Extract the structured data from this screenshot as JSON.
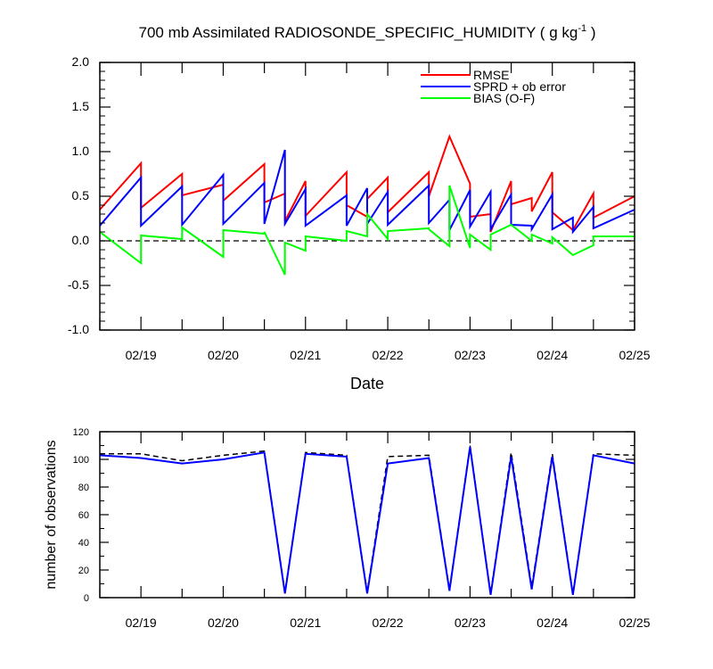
{
  "colors": {
    "rmse": "#ff0000",
    "sprd": "#0000ff",
    "bias": "#00ff00",
    "obs_possible": "#000000",
    "obs_assim": "#0000ff",
    "axis": "#000000"
  },
  "chart_data": [
    {
      "type": "line",
      "title_main": "700 mb Assimilated RADIOSONDE_SPECIFIC_HUMIDITY ( g kg",
      "title_sup": "-1",
      "title_end": " )",
      "xlabel": "Date",
      "ylabel": "",
      "xlim": [
        0,
        6.5
      ],
      "ylim": [
        -1.0,
        2.0
      ],
      "yticks": [
        "2.0",
        "1.5",
        "1.0",
        "0.5",
        "0.0",
        "-0.5",
        "-1.0"
      ],
      "ytick_values": [
        2.0,
        1.5,
        1.0,
        0.5,
        0.0,
        -0.5,
        -1.0
      ],
      "xtick_labels": [
        "02/19",
        "02/20",
        "02/21",
        "02/22",
        "02/23",
        "02/24",
        "02/25"
      ],
      "xtick_values": [
        0.5,
        1.5,
        2.5,
        3.5,
        4.5,
        5.5,
        6.5
      ],
      "zero_line": "dashed",
      "legend_position": "top-right",
      "series": [
        {
          "name": "RMSE",
          "x": [
            0,
            0.5,
            0.5,
            1.0,
            1.0,
            1.5,
            1.5,
            2.0,
            2.0,
            2.25,
            2.25,
            2.5,
            2.5,
            3.0,
            3.0,
            3.25,
            3.25,
            3.5,
            3.5,
            4.0,
            4.0,
            4.25,
            4.25,
            4.5,
            4.5,
            4.75,
            4.75,
            5.0,
            5.0,
            5.25,
            5.25,
            5.5,
            5.5,
            5.75,
            5.75,
            6.0,
            6.0,
            6.5
          ],
          "y": [
            0.35,
            0.87,
            0.37,
            0.75,
            0.51,
            0.63,
            0.45,
            0.86,
            0.43,
            0.53,
            0.22,
            0.67,
            0.28,
            0.77,
            0.4,
            0.27,
            0.47,
            0.71,
            0.32,
            0.77,
            0.5,
            1.17,
            1.17,
            0.64,
            0.27,
            0.3,
            0.1,
            0.67,
            0.41,
            0.48,
            0.33,
            0.77,
            0.32,
            0.12,
            0.12,
            0.53,
            0.26,
            0.5
          ]
        },
        {
          "name": "SPRD + ob error",
          "x": [
            0,
            0.5,
            0.5,
            1.0,
            1.0,
            1.5,
            1.5,
            2.0,
            2.0,
            2.25,
            2.25,
            2.5,
            2.5,
            3.0,
            3.0,
            3.25,
            3.25,
            3.5,
            3.5,
            4.0,
            4.0,
            4.25,
            4.25,
            4.5,
            4.5,
            4.75,
            4.75,
            5.0,
            5.0,
            5.25,
            5.25,
            5.5,
            5.5,
            5.75,
            5.75,
            6.0,
            6.0,
            6.5
          ],
          "y": [
            0.17,
            0.71,
            0.17,
            0.61,
            0.18,
            0.74,
            0.19,
            0.65,
            0.19,
            1.02,
            0.19,
            0.58,
            0.17,
            0.51,
            0.17,
            0.59,
            0.19,
            0.55,
            0.18,
            0.62,
            0.2,
            0.46,
            0.12,
            0.57,
            0.16,
            0.55,
            0.13,
            0.52,
            0.18,
            0.17,
            0.13,
            0.52,
            0.13,
            0.26,
            0.1,
            0.38,
            0.14,
            0.35
          ]
        },
        {
          "name": "BIAS (O-F)",
          "x": [
            0,
            0.5,
            0.5,
            1.0,
            1.0,
            1.5,
            1.5,
            2.0,
            2.0,
            2.25,
            2.25,
            2.5,
            2.5,
            3.0,
            3.0,
            3.25,
            3.25,
            3.5,
            3.5,
            4.0,
            4.0,
            4.25,
            4.25,
            4.5,
            4.5,
            4.75,
            4.75,
            5.0,
            5.0,
            5.25,
            5.25,
            5.5,
            5.5,
            5.75,
            5.75,
            6.0,
            6.0,
            6.5
          ],
          "y": [
            0.1,
            -0.25,
            0.06,
            0.02,
            0.15,
            -0.18,
            0.12,
            0.08,
            0.1,
            -0.38,
            -0.02,
            -0.11,
            0.05,
            0.0,
            0.11,
            0.05,
            0.3,
            0.02,
            0.11,
            0.14,
            0.13,
            -0.06,
            0.62,
            -0.08,
            0.07,
            -0.1,
            0.07,
            0.18,
            0.18,
            0.0,
            0.07,
            -0.03,
            0.04,
            -0.16,
            -0.16,
            -0.05,
            0.05,
            0.05
          ]
        }
      ]
    },
    {
      "type": "line",
      "title": "",
      "xlabel": "",
      "ylabel": "number of observations",
      "xlim": [
        0,
        6.5
      ],
      "ylim": [
        0,
        120
      ],
      "yticks": [
        "120",
        "100",
        "80",
        "60",
        "40",
        "20",
        "0"
      ],
      "ytick_values": [
        120,
        100,
        80,
        60,
        40,
        20,
        0
      ],
      "xtick_labels": [
        "02/19",
        "02/20",
        "02/21",
        "02/22",
        "02/23",
        "02/24",
        "02/25"
      ],
      "xtick_values": [
        0.5,
        1.5,
        2.5,
        3.5,
        4.5,
        5.5,
        6.5
      ],
      "series": [
        {
          "name": "",
          "style": "dashed",
          "x": [
            0,
            0.5,
            1.0,
            1.5,
            2.0,
            2.25,
            2.5,
            3.0,
            3.25,
            3.5,
            4.0,
            4.25,
            4.5,
            4.75,
            5.0,
            5.25,
            5.5,
            5.75,
            6.0,
            6.5
          ],
          "y": [
            104,
            104,
            99,
            103,
            106,
            4,
            105,
            103,
            4,
            102,
            103,
            6,
            110,
            3,
            105,
            8,
            104,
            3,
            104,
            103
          ]
        },
        {
          "name": "",
          "style": "solid",
          "x": [
            0,
            0.5,
            1.0,
            1.5,
            2.0,
            2.25,
            2.5,
            3.0,
            3.25,
            3.5,
            4.0,
            4.25,
            4.5,
            4.75,
            5.0,
            5.25,
            5.5,
            5.75,
            6.0,
            6.5
          ],
          "y": [
            103,
            101,
            97,
            100,
            105,
            3,
            104,
            102,
            3,
            97,
            101,
            5,
            109,
            2,
            102,
            6,
            102,
            2,
            103,
            97
          ]
        }
      ]
    }
  ]
}
